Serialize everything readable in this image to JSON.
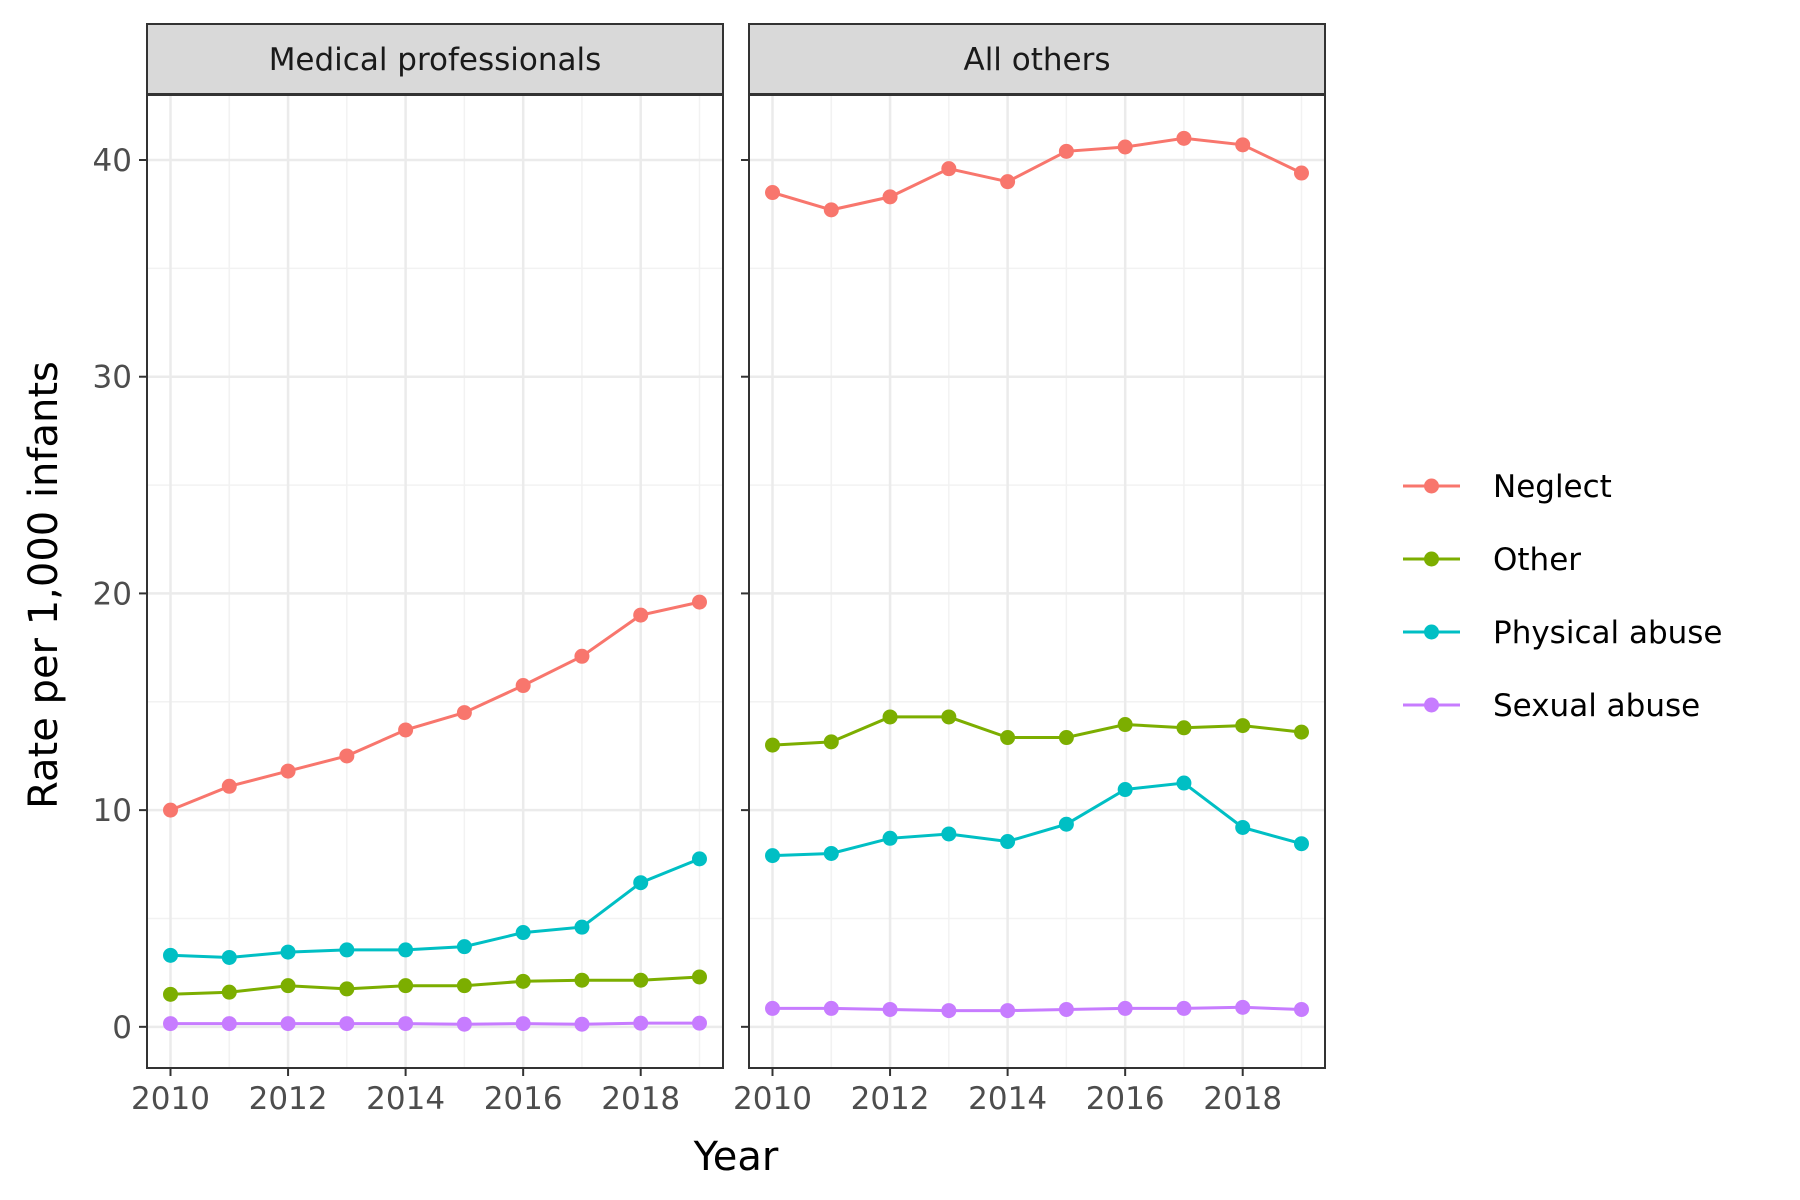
{
  "chart_data": {
    "type": "line",
    "xlabel": "Year",
    "ylabel": "Rate per 1,000 infants",
    "x": [
      2010,
      2011,
      2012,
      2013,
      2014,
      2015,
      2016,
      2017,
      2018,
      2019
    ],
    "xlim": [
      2009.6,
      2019.4
    ],
    "ylim": [
      -1.9,
      43.0
    ],
    "x_ticks": [
      2010,
      2012,
      2014,
      2016,
      2018
    ],
    "y_ticks": [
      0,
      10,
      20,
      30,
      40
    ],
    "x_tick_labels": [
      "2010",
      "2012",
      "2014",
      "2016",
      "2018"
    ],
    "y_tick_labels": [
      "0",
      "10",
      "20",
      "30",
      "40"
    ],
    "grid": true,
    "legend_position": "right",
    "series_colors": {
      "Neglect": "#F8766D",
      "Other": "#7CAE00",
      "Physical abuse": "#00BFC4",
      "Sexual abuse": "#C77CFF"
    },
    "legend": [
      "Neglect",
      "Other",
      "Physical abuse",
      "Sexual abuse"
    ],
    "panels": [
      {
        "label": "Medical professionals",
        "series": [
          {
            "name": "Neglect",
            "values": [
              10.0,
              11.1,
              11.8,
              12.5,
              13.7,
              14.5,
              15.75,
              17.1,
              19.0,
              19.6
            ]
          },
          {
            "name": "Other",
            "values": [
              1.5,
              1.6,
              1.9,
              1.75,
              1.9,
              1.9,
              2.1,
              2.15,
              2.15,
              2.3
            ]
          },
          {
            "name": "Physical abuse",
            "values": [
              3.3,
              3.2,
              3.45,
              3.55,
              3.55,
              3.7,
              4.35,
              4.6,
              6.65,
              7.75
            ]
          },
          {
            "name": "Sexual abuse",
            "values": [
              0.15,
              0.15,
              0.15,
              0.15,
              0.15,
              0.12,
              0.15,
              0.12,
              0.17,
              0.17
            ]
          }
        ]
      },
      {
        "label": "All others",
        "series": [
          {
            "name": "Neglect",
            "values": [
              38.5,
              37.7,
              38.3,
              39.6,
              39.0,
              40.4,
              40.6,
              41.0,
              40.7,
              39.4
            ]
          },
          {
            "name": "Other",
            "values": [
              13.0,
              13.15,
              14.3,
              14.3,
              13.35,
              13.35,
              13.95,
              13.8,
              13.9,
              13.6
            ]
          },
          {
            "name": "Physical abuse",
            "values": [
              7.9,
              8.0,
              8.7,
              8.9,
              8.55,
              9.35,
              10.95,
              11.25,
              9.2,
              8.45
            ]
          },
          {
            "name": "Sexual abuse",
            "values": [
              0.85,
              0.85,
              0.8,
              0.75,
              0.75,
              0.8,
              0.85,
              0.85,
              0.9,
              0.8
            ]
          }
        ]
      }
    ]
  }
}
